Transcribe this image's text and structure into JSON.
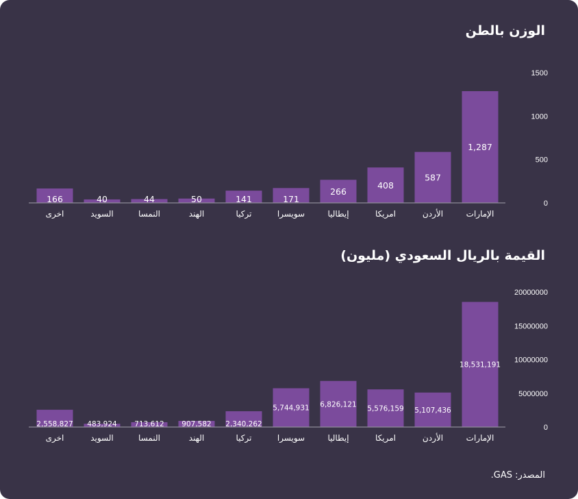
{
  "colors": {
    "background": "#393347",
    "bar": "#7b4b9c",
    "text": "#ffffff",
    "axis": "#8f8a99"
  },
  "source": "المصدر: GAS.",
  "chart_data": [
    {
      "type": "bar",
      "title": "الوزن بالطن",
      "categories": [
        "الإمارات",
        "الأردن",
        "امريكا",
        "إيطاليا",
        "سويسرا",
        "تركيا",
        "الهند",
        "النمسا",
        "السويد",
        "اخرى"
      ],
      "values": [
        1287,
        587,
        408,
        266,
        171,
        141,
        50,
        44,
        40,
        166
      ],
      "value_labels": [
        "1,287",
        "587",
        "408",
        "266",
        "171",
        "141",
        "50",
        "44",
        "40",
        "166"
      ],
      "yticks": [
        "0",
        "500",
        "1000",
        "1500"
      ],
      "ylim": [
        0,
        1500
      ],
      "axis_position": "right",
      "grid": false
    },
    {
      "type": "bar",
      "title": "القيمة بالريال السعودي (مليون)",
      "categories": [
        "الإمارات",
        "الأردن",
        "امريكا",
        "إيطاليا",
        "سويسرا",
        "تركيا",
        "الهند",
        "النمسا",
        "السويد",
        "اخرى"
      ],
      "values": [
        18531191,
        5107436,
        5576159,
        6826121,
        5744931,
        2340262,
        907582,
        713612,
        483924,
        2558827
      ],
      "value_labels": [
        "18,531,191",
        "5,107,436",
        "5,576,159",
        "6,826,121",
        "5,744,931",
        "2,340,262",
        "907,582",
        "713,612",
        "483,924",
        "2,558,827"
      ],
      "yticks": [
        "0",
        "5000000",
        "10000000",
        "15000000",
        "20000000"
      ],
      "ylim": [
        0,
        20000000
      ],
      "axis_position": "right",
      "grid": false
    }
  ]
}
